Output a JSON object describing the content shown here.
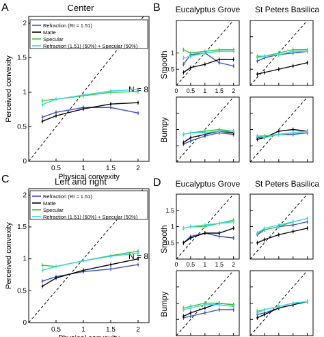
{
  "figure": {
    "panels": [
      {
        "letter": "A",
        "title": "Center"
      },
      {
        "letter": "B",
        "title": ""
      },
      {
        "letter": "C",
        "title": "Left and right"
      },
      {
        "letter": "D",
        "title": ""
      }
    ],
    "scene_titles": [
      "Eucalyptus Grove",
      "St Peters Basilica"
    ],
    "row_labels": [
      "Smooth",
      "Bumpy"
    ],
    "n_label": "N = 8"
  },
  "colors": {
    "refraction": "#3a4fd6",
    "matte": "#000000",
    "specular": "#2ecc2e",
    "mix": "#33d6e6"
  },
  "chart_data": [
    {
      "type": "line",
      "panel": "A",
      "title": "Center",
      "xlabel": "Physical convexity",
      "ylabel": "Perceived convexity",
      "xlim": [
        0,
        2.2
      ],
      "ylim": [
        0,
        2.1
      ],
      "xticks": [
        "0.5",
        "1",
        "1.5",
        "2"
      ],
      "yticks": [
        "0",
        "0.5",
        "1",
        "1.5",
        "2"
      ],
      "x": [
        0.25,
        0.5,
        1,
        1.5,
        2
      ],
      "series": [
        {
          "name": "Refraction (RI = 1.51)",
          "values": [
            0.64,
            0.71,
            0.78,
            0.78,
            0.7
          ]
        },
        {
          "name": "Matte",
          "values": [
            0.58,
            0.66,
            0.76,
            0.83,
            0.85
          ]
        },
        {
          "name": "Specular",
          "values": [
            0.88,
            0.9,
            0.95,
            1.0,
            1.01
          ]
        },
        {
          "name": "Refraction (1.51) (50%) + Specular (50%)",
          "values": [
            0.82,
            0.9,
            0.96,
            1.02,
            1.04
          ]
        }
      ]
    },
    {
      "type": "line",
      "panel": "C",
      "title": "Left and right",
      "xlabel": "Physical convexity",
      "ylabel": "Perceived convexity",
      "xlim": [
        0,
        2.2
      ],
      "ylim": [
        0,
        2.1
      ],
      "xticks": [
        "0.5",
        "1",
        "1.5",
        "2"
      ],
      "yticks": [
        "0",
        "0.5",
        "1",
        "1.5",
        "2"
      ],
      "x": [
        0.25,
        0.5,
        1,
        1.5,
        2
      ],
      "series": [
        {
          "name": "Refraction (RI = 1.51)",
          "values": [
            0.65,
            0.72,
            0.8,
            0.84,
            0.91
          ]
        },
        {
          "name": "Matte",
          "values": [
            0.57,
            0.7,
            0.82,
            0.91,
            1.0
          ]
        },
        {
          "name": "Specular",
          "values": [
            0.9,
            0.88,
            0.97,
            1.05,
            1.12
          ]
        },
        {
          "name": "Refraction (1.51) (50%) + Specular (50%)",
          "values": [
            0.82,
            0.88,
            0.97,
            1.04,
            1.09
          ]
        }
      ]
    },
    {
      "type": "line",
      "panel": "B",
      "scene": "Eucalyptus Grove",
      "row": "Smooth",
      "xlim": [
        0,
        2.2
      ],
      "ylim": [
        0,
        2
      ],
      "xticks": [
        "0",
        "0.5",
        "1",
        "1.5",
        "2"
      ],
      "yticks": [
        "0.5",
        "1"
      ],
      "x": [
        0.25,
        0.5,
        1,
        1.5,
        2
      ],
      "series": [
        {
          "name": "Refraction (RI = 1.51)",
          "values": [
            0.65,
            0.95,
            1.0,
            0.7,
            0.6
          ]
        },
        {
          "name": "Matte",
          "values": [
            0.4,
            0.55,
            0.65,
            0.8,
            0.8
          ]
        },
        {
          "name": "Specular",
          "values": [
            1.1,
            1.0,
            1.05,
            1.1,
            1.1
          ]
        },
        {
          "name": "Refraction (1.51) (50%) + Specular (50%)",
          "values": [
            0.85,
            0.9,
            1.0,
            1.05,
            1.05
          ]
        }
      ]
    },
    {
      "type": "line",
      "panel": "B",
      "scene": "St Peters Basilica",
      "row": "Smooth",
      "xlim": [
        0,
        2.2
      ],
      "ylim": [
        0,
        2
      ],
      "x": [
        0.25,
        0.5,
        1,
        1.5,
        2
      ],
      "series": [
        {
          "name": "Refraction (RI = 1.51)",
          "values": [
            0.75,
            0.85,
            0.95,
            1.0,
            1.05
          ]
        },
        {
          "name": "Matte",
          "values": [
            0.35,
            0.4,
            0.5,
            0.6,
            0.7
          ]
        },
        {
          "name": "Specular",
          "values": [
            0.9,
            0.9,
            1.0,
            1.1,
            1.1
          ]
        },
        {
          "name": "Refraction (1.51) (50%) + Specular (50%)",
          "values": [
            0.85,
            0.9,
            0.95,
            1.05,
            1.05
          ]
        }
      ]
    },
    {
      "type": "line",
      "panel": "B",
      "scene": "Eucalyptus Grove",
      "row": "Bumpy",
      "xlim": [
        0,
        2.2
      ],
      "ylim": [
        0,
        2
      ],
      "x": [
        0.25,
        0.5,
        1,
        1.5,
        2
      ],
      "series": [
        {
          "name": "Refraction (RI = 1.51)",
          "values": [
            0.55,
            0.65,
            0.8,
            0.9,
            0.85
          ]
        },
        {
          "name": "Matte",
          "values": [
            0.6,
            0.75,
            0.85,
            0.95,
            0.9
          ]
        },
        {
          "name": "Specular",
          "values": [
            0.85,
            0.9,
            0.95,
            1.0,
            0.95
          ]
        },
        {
          "name": "Refraction (1.51) (50%) + Specular (50%)",
          "values": [
            0.85,
            0.9,
            0.9,
            0.95,
            0.95
          ]
        }
      ]
    },
    {
      "type": "line",
      "panel": "B",
      "scene": "St Peters Basilica",
      "row": "Bumpy",
      "xlim": [
        0,
        2.2
      ],
      "ylim": [
        0,
        2
      ],
      "x": [
        0.25,
        0.5,
        1,
        1.5,
        2
      ],
      "series": [
        {
          "name": "Refraction (RI = 1.51)",
          "values": [
            0.75,
            0.75,
            0.85,
            0.85,
            0.9
          ]
        },
        {
          "name": "Matte",
          "values": [
            0.7,
            0.75,
            0.95,
            1.0,
            0.95
          ]
        },
        {
          "name": "Specular",
          "values": [
            0.8,
            0.8,
            0.85,
            0.9,
            0.95
          ]
        },
        {
          "name": "Refraction (1.51) (50%) + Specular (50%)",
          "values": [
            0.8,
            0.75,
            0.85,
            0.9,
            0.95
          ]
        }
      ]
    },
    {
      "type": "line",
      "panel": "D",
      "scene": "Eucalyptus Grove",
      "row": "Smooth",
      "xlim": [
        0,
        2.2
      ],
      "ylim": [
        0,
        2
      ],
      "xticks": [
        "0",
        "0.5",
        "1",
        "1.5",
        "2"
      ],
      "yticks": [
        "0.5",
        "1",
        "1.5"
      ],
      "x": [
        0.25,
        0.5,
        1,
        1.5,
        2
      ],
      "series": [
        {
          "name": "Refraction (RI = 1.51)",
          "values": [
            0.5,
            0.7,
            0.8,
            0.7,
            0.65
          ]
        },
        {
          "name": "Matte",
          "values": [
            0.5,
            0.65,
            0.8,
            0.8,
            0.95
          ]
        },
        {
          "name": "Specular",
          "values": [
            0.95,
            1.0,
            1.0,
            1.1,
            1.2
          ]
        },
        {
          "name": "Refraction (1.51) (50%) + Specular (50%)",
          "values": [
            0.95,
            1.0,
            1.05,
            1.1,
            1.15
          ]
        }
      ]
    },
    {
      "type": "line",
      "panel": "D",
      "scene": "St Peters Basilica",
      "row": "Smooth",
      "xlim": [
        0,
        2.2
      ],
      "ylim": [
        0,
        2
      ],
      "x": [
        0.25,
        0.5,
        1,
        1.5,
        2
      ],
      "series": [
        {
          "name": "Refraction (RI = 1.51)",
          "values": [
            0.75,
            0.9,
            1.0,
            1.05,
            1.15
          ]
        },
        {
          "name": "Matte",
          "values": [
            0.5,
            0.6,
            0.75,
            0.85,
            0.95
          ]
        },
        {
          "name": "Specular",
          "values": [
            0.8,
            0.9,
            1.0,
            1.15,
            1.25
          ]
        },
        {
          "name": "Refraction (1.51) (50%) + Specular (50%)",
          "values": [
            0.8,
            0.95,
            1.05,
            1.15,
            1.25
          ]
        }
      ]
    },
    {
      "type": "line",
      "panel": "D",
      "scene": "Eucalyptus Grove",
      "row": "Bumpy",
      "xlim": [
        0,
        2.2
      ],
      "ylim": [
        0,
        2
      ],
      "x": [
        0.25,
        0.5,
        1,
        1.5,
        2
      ],
      "series": [
        {
          "name": "Refraction (RI = 1.51)",
          "values": [
            0.55,
            0.6,
            0.7,
            0.8,
            0.8
          ]
        },
        {
          "name": "Matte",
          "values": [
            0.6,
            0.7,
            0.85,
            1.0,
            0.95
          ]
        },
        {
          "name": "Specular",
          "values": [
            0.85,
            0.9,
            1.0,
            1.0,
            0.95
          ]
        },
        {
          "name": "Refraction (1.51) (50%) + Specular (50%)",
          "values": [
            0.8,
            0.85,
            0.95,
            0.95,
            0.9
          ]
        }
      ]
    },
    {
      "type": "line",
      "panel": "D",
      "scene": "St Peters Basilica",
      "row": "Bumpy",
      "xlim": [
        0,
        2.2
      ],
      "ylim": [
        0,
        2
      ],
      "x": [
        0.25,
        0.5,
        1,
        1.5,
        2
      ],
      "series": [
        {
          "name": "Refraction (RI = 1.51)",
          "values": [
            0.65,
            0.7,
            0.85,
            0.95,
            1.05
          ]
        },
        {
          "name": "Matte",
          "values": [
            0.55,
            0.65,
            0.85,
            0.95,
            1.05
          ]
        },
        {
          "name": "Specular",
          "values": [
            0.75,
            0.8,
            0.9,
            1.0,
            1.05
          ]
        },
        {
          "name": "Refraction (1.51) (50%) + Specular (50%)",
          "values": [
            0.7,
            0.8,
            0.9,
            1.0,
            1.05
          ]
        }
      ]
    }
  ]
}
